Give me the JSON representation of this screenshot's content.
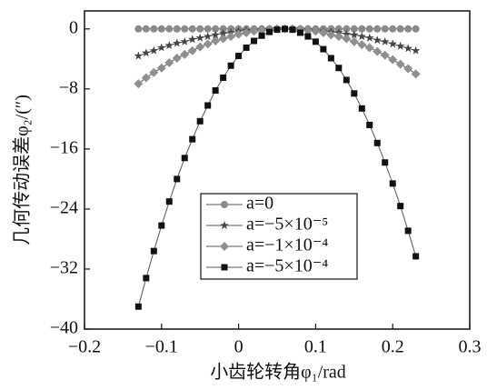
{
  "chart_data": {
    "type": "line",
    "x_label": "小齿轮转角φ₁/rad",
    "y_label": "几何传动误差φ₂/(″)",
    "x": [
      -0.13,
      -0.12,
      -0.11,
      -0.1,
      -0.09,
      -0.08,
      -0.07,
      -0.06,
      -0.05,
      -0.04,
      -0.03,
      -0.02,
      -0.01,
      0,
      0.01,
      0.02,
      0.03,
      0.04,
      0.05,
      0.06,
      0.07,
      0.08,
      0.09,
      0.1,
      0.11,
      0.12,
      0.13,
      0.14,
      0.15,
      0.16,
      0.17,
      0.18,
      0.19,
      0.2,
      0.21,
      0.22,
      0.23
    ],
    "series": [
      {
        "name": "a=0",
        "color": "#8a8a8a",
        "marker": "circle",
        "values": [
          0,
          0,
          0,
          0,
          0,
          0,
          0,
          0,
          0,
          0,
          0,
          0,
          0,
          0,
          0,
          0,
          0,
          0,
          0,
          0,
          0,
          0,
          0,
          0,
          0,
          0,
          0,
          0,
          0,
          0,
          0,
          0,
          0,
          0,
          0,
          0,
          0
        ]
      },
      {
        "name": "a=−5×10⁻⁵",
        "color": "#444444",
        "marker": "star",
        "values": [
          -3.6,
          -3.2,
          -2.9,
          -2.5,
          -2.2,
          -1.9,
          -1.7,
          -1.4,
          -1.2,
          -1.0,
          -0.8,
          -0.6,
          -0.5,
          -0.3,
          -0.2,
          -0.2,
          -0.1,
          0,
          0,
          0,
          0,
          0,
          -0.1,
          -0.2,
          -0.3,
          -0.4,
          -0.5,
          -0.7,
          -0.8,
          -1.0,
          -1.2,
          -1.5,
          -1.7,
          -2.0,
          -2.3,
          -2.6,
          -2.9
        ]
      },
      {
        "name": "a=−1×10⁻⁴",
        "color": "#8f8f8f",
        "marker": "diamond",
        "values": [
          -7.3,
          -6.5,
          -5.8,
          -5.2,
          -4.5,
          -3.9,
          -3.4,
          -2.9,
          -2.4,
          -2.0,
          -1.6,
          -1.3,
          -1.0,
          -0.7,
          -0.5,
          -0.3,
          -0.2,
          -0.1,
          0,
          0,
          0,
          -0.1,
          -0.2,
          -0.3,
          -0.5,
          -0.8,
          -1.0,
          -1.3,
          -1.7,
          -2.1,
          -2.5,
          -3.0,
          -3.5,
          -4.1,
          -4.7,
          -5.3,
          -6.0
        ]
      },
      {
        "name": "a=−5×10⁻⁴",
        "color": "#111111",
        "marker": "square",
        "values": [
          -37.0,
          -33.2,
          -29.6,
          -26.2,
          -23.0,
          -20.0,
          -17.2,
          -14.7,
          -12.3,
          -10.2,
          -8.2,
          -6.5,
          -4.9,
          -3.6,
          -2.5,
          -1.6,
          -0.9,
          -0.4,
          -0.1,
          0,
          -0.1,
          -0.5,
          -1.0,
          -1.7,
          -2.7,
          -3.9,
          -5.2,
          -6.8,
          -8.6,
          -10.6,
          -12.8,
          -15.2,
          -17.8,
          -20.6,
          -23.6,
          -26.9,
          -30.3
        ]
      }
    ],
    "xlim": [
      -0.2,
      0.3
    ],
    "xticks": [
      {
        "value": -0.2,
        "label": "−0.2"
      },
      {
        "value": -0.1,
        "label": "−0.1"
      },
      0,
      0.1,
      0.2,
      0.3
    ],
    "ylim": [
      -40,
      2.4
    ],
    "yticks": [
      0,
      {
        "value": -8,
        "label": "−8"
      },
      {
        "value": -16,
        "label": "−16"
      },
      {
        "value": -24,
        "label": "−24"
      },
      {
        "value": -32,
        "label": "−32"
      },
      {
        "value": -40,
        "label": "−40"
      }
    ],
    "legend": "lower center"
  }
}
